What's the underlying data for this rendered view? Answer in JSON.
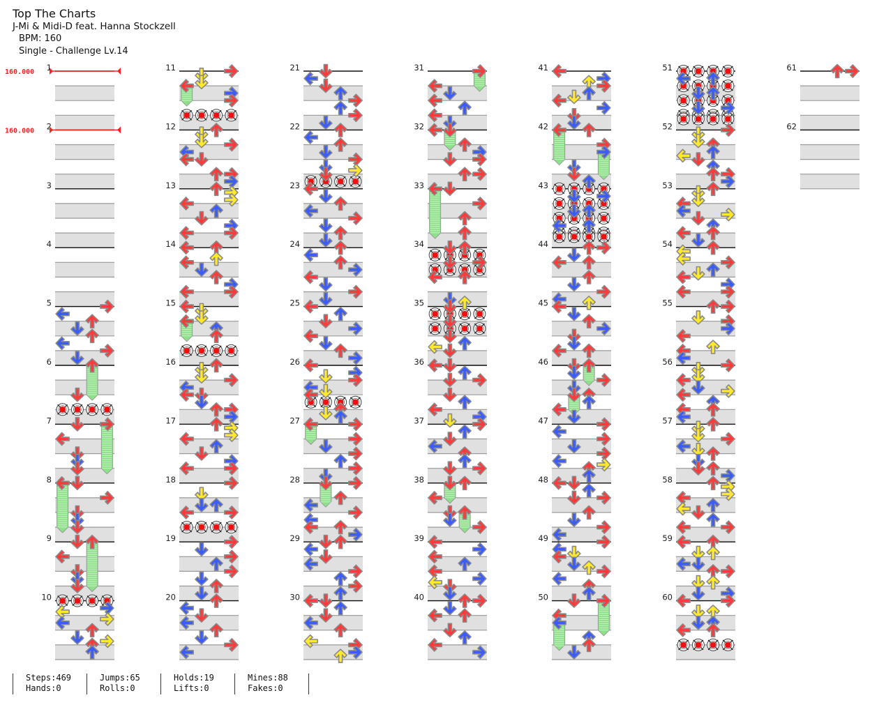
{
  "song": {
    "title": "Top The Charts",
    "artist": "J-Mi & Midi-D feat. Hanna Stockzell",
    "bpm_label": "BPM: 160",
    "difficulty_label": "Single - Challenge  Lv.14"
  },
  "colors": {
    "quarter": "#ff3a3a",
    "eighth": "#3a5cff",
    "sixteenth": "#ffe92a",
    "hold": "#8ee08a",
    "band": "#e0e0e0",
    "bpm": "#ff2020"
  },
  "bpm_changes": [
    {
      "measure": 1,
      "label": "160.000"
    },
    {
      "measure": 2,
      "label": "160.000"
    }
  ],
  "measures": [
    {
      "n": "1",
      "notes": ""
    },
    {
      "n": "2",
      "notes": ""
    },
    {
      "n": "3",
      "notes": ""
    },
    {
      "n": "4",
      "notes": ""
    },
    {
      "n": "5",
      "notes": "0R 2L 4U 6D 8U 10L 12R 14D"
    },
    {
      "n": "6",
      "notes": "0>8U 8D 12M"
    },
    {
      "n": "7",
      "notes": "0D 0>12R 4L 8D 10D 12D"
    },
    {
      "n": "8",
      "notes": "0D 0>12L 4R 8D 10D 12D"
    },
    {
      "n": "9",
      "notes": "0D 0>12U 4L 8D 10D 12D"
    },
    {
      "n": "10",
      "notes": "0M 2R 3L 5R 6L 8U 10D 11R 12U 14U"
    },
    {
      "n": "11",
      "notes": "0R 1D 3D 4>8L 6R 8R 12M"
    },
    {
      "n": "12",
      "notes": "0U 1D 3D 4R 6L 8LD 12UR 14R"
    },
    {
      "n": "13",
      "notes": "0U 1R 3R 4L 6U 8D 10R 12LR"
    },
    {
      "n": "14",
      "notes": "0LU 3U 4L 6D 8U 10R 12LR"
    },
    {
      "n": "15",
      "notes": "0L 1D 3D 4>8L 6U 8U 12M"
    },
    {
      "n": "16",
      "notes": "0U 1D 3D 4R 6L 8LD 10D 12UR 14R"
    },
    {
      "n": "17",
      "notes": "0U 1R 3R 4L 6U 8D 10R 12LR"
    },
    {
      "n": "18",
      "notes": "0R 3D 6DU 8LR 12M"
    },
    {
      "n": "19",
      "notes": "0R 2D 4R 6U 8R 10D 12U 14D"
    },
    {
      "n": "20",
      "notes": "0U 2L 4D 6L 8U 10D 12R 14L"
    },
    {
      "n": "21",
      "notes": "0D 2L 4D 6U 8R 10U 12R 14D"
    },
    {
      "n": "22",
      "notes": "0U 2L 4U 6D 8R 10D 11R 12D 14M"
    },
    {
      "n": "23",
      "notes": "0L 2D 4U 6L 8R 10D 12U 14D"
    },
    {
      "n": "24",
      "notes": "0U 2L 4U 6R 8L 10D 12R 14D"
    },
    {
      "n": "25",
      "notes": "0L 2U 4D 6R 8L 10D 12U 14R"
    },
    {
      "n": "26",
      "notes": "0L 2R 3D 4R 6L 7D 8L 10M 12U 13D 14U"
    },
    {
      "n": "27",
      "notes": "0>4L 0R 4R 6D 8R 10U 12R 14D"
    },
    {
      "n": "28",
      "notes": "0>5D 0R 4U 6L 8R 10L 12LU 14R"
    },
    {
      "n": "29",
      "notes": "0DU 2L 4D 6L 8R 10U 12R 14U"
    },
    {
      "n": "30",
      "notes": "0LD 2U 4D 6L 8U 11L 12R 14R 15U"
    },
    {
      "n": "31",
      "notes": "0>4R 4L 6D 8L 10U 12L 14D"
    },
    {
      "n": "32",
      "notes": "0L 0>4D 4U 6R 8DR 12UR"
    },
    {
      "n": "33",
      "notes": "0>12L 0D 4R 8U 12U"
    },
    {
      "n": "34",
      "notes": "0DU 2M 4DR 6M 8LU 14D 15U"
    },
    {
      "n": "35",
      "notes": "0D 2M 4D 6M 8D 10U 11L 12D"
    },
    {
      "n": "36",
      "notes": "0LD 2U 4DR 8D 10U 12L 14R 15D"
    },
    {
      "n": "37",
      "notes": "0R 2U 4D 6L 8U 10U 12DR"
    },
    {
      "n": "38",
      "notes": "0>4D 0U 4L 8D 8>12U 10D 12R"
    },
    {
      "n": "39",
      "notes": "0L 2R 4L 6U 8L 10R 11L 12D 14D"
    },
    {
      "n": "40",
      "notes": "0UR 2D 4LU 8D 10U 12L 14R"
    },
    {
      "n": "41",
      "notes": "0L 2R 3U 4R 6U 7D 8L 10R 12D 14D"
    },
    {
      "n": "42",
      "notes": "0>8L 0U 4R 6>12R 10D 12D 14U"
    },
    {
      "n": "43",
      "notes": "0M 2DR 4M 6DU 8M 10LU 12M 13M"
    },
    {
      "n": "44",
      "notes": "0UR 2D 4LU 8U 10D 12R 14L 15U"
    },
    {
      "n": "45",
      "notes": "0L 2D 4U 6R 8D 10D 12LU"
    },
    {
      "n": "46",
      "notes": "0D 0>4U 2D 4R 6D 8>12D 8U 10U 12L 14D"
    },
    {
      "n": "47",
      "notes": "0R 2L 4R 6D 8R 10L 11R 12U 14U"
    },
    {
      "n": "48",
      "notes": "0LD 2U 4DR 8U 10D 12R 14L"
    },
    {
      "n": "49",
      "notes": "0R 2L 3D 4L 6D 7U 8R 10L 12U 14U"
    },
    {
      "n": "50",
      "notes": "0D 0>8R 4L 6>12L 10U 12U 14D"
    },
    {
      "n": "51",
      "notes": "0M 2LU 4M 6DU 8M 10DR 12M 13M"
    },
    {
      "n": "52",
      "notes": "0R 1D 3D 4U 6U 7L 8D 10U 12UR 14R"
    },
    {
      "n": "53",
      "notes": "0U 1D 3D 4L 6L 7R 8D 10U 12LU 14D"
    },
    {
      "n": "54",
      "notes": "0U 1L 3L 4R 6U 7D 8L 10R 12LR"
    },
    {
      "n": "55",
      "notes": "0UR 3D 4R 6R 8L 11U 12L 14L"
    },
    {
      "n": "56",
      "notes": "0R 1D 3D 4L 6D 7R 8L 10U 12LU 14L"
    },
    {
      "n": "57",
      "notes": "0U 1D 3D 4R 6L 7D 8U 10D 12DU 14R"
    },
    {
      "n": "58",
      "notes": "0U 1R 3R 4L 6U 7L 8D 10U 12LR"
    },
    {
      "n": "59",
      "notes": "0LU 3DU 6LD 8UR 11DU 14DR"
    },
    {
      "n": "60",
      "notes": "0LR 3DU 6DU 8LU 12M"
    },
    {
      "n": "61",
      "notes": "0UR"
    },
    {
      "n": "62",
      "notes": ""
    }
  ],
  "stats": [
    {
      "top": "Steps:469",
      "bottom": "Hands:0"
    },
    {
      "top": "Jumps:65",
      "bottom": "Rolls:0"
    },
    {
      "top": "Holds:19",
      "bottom": "Lifts:0"
    },
    {
      "top": "Mines:88",
      "bottom": "Fakes:0"
    }
  ]
}
